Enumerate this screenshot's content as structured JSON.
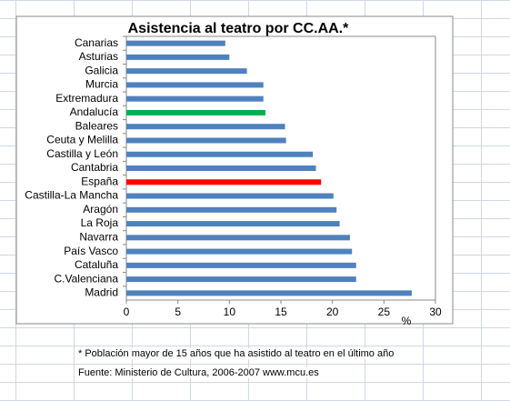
{
  "chart_data": {
    "type": "hbar",
    "title": "Asistencia al teatro por CC.AA.*",
    "categories": [
      "Canarias",
      "Asturias",
      "Galicia",
      "Murcia",
      "Extremadura",
      "Andalucía",
      "Baleares",
      "Ceuta y Melilla",
      "Castilla y León",
      "Cantabria",
      "España",
      "Castilla-La Mancha",
      "Aragón",
      "La Roja",
      "Navarra",
      "País Vasco",
      "Cataluña",
      "C.Valenciana",
      "Madrid"
    ],
    "values": [
      9.6,
      10.0,
      11.7,
      13.3,
      13.3,
      13.5,
      15.4,
      15.5,
      18.1,
      18.4,
      18.9,
      20.1,
      20.4,
      20.7,
      21.7,
      21.9,
      22.3,
      22.3,
      27.7
    ],
    "colors": [
      "#4f81bd",
      "#4f81bd",
      "#4f81bd",
      "#4f81bd",
      "#4f81bd",
      "#00b050",
      "#4f81bd",
      "#4f81bd",
      "#4f81bd",
      "#4f81bd",
      "#ff0000",
      "#4f81bd",
      "#4f81bd",
      "#4f81bd",
      "#4f81bd",
      "#4f81bd",
      "#4f81bd",
      "#4f81bd",
      "#4f81bd"
    ],
    "x_label": "%",
    "xlim": [
      0,
      30
    ],
    "xticks": [
      0,
      5,
      10,
      15,
      20,
      25,
      30
    ],
    "grid": false
  },
  "notes": [
    "* Población mayor de 15 años que ha asistido al teatro en el último año",
    "Fuente: Ministerio de Cultura, 2006-2007    www.mcu.es"
  ]
}
